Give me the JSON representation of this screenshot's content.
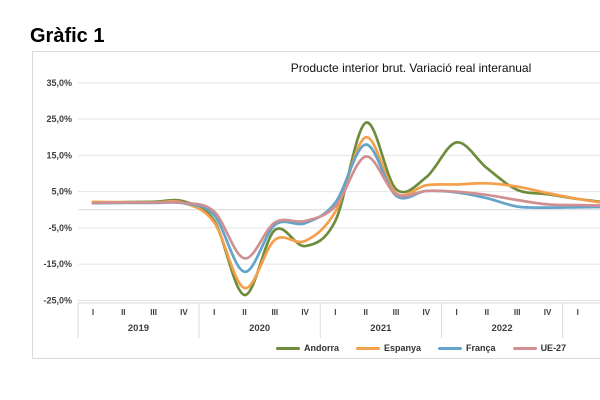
{
  "page": {
    "title": "Gràfic 1"
  },
  "chart_data": {
    "type": "line",
    "title": "Producte interior brut. Variació real interanual",
    "x_unit": "quarter",
    "year_groups": [
      {
        "year": "2019",
        "quarters": [
          "I",
          "II",
          "III",
          "IV"
        ]
      },
      {
        "year": "2020",
        "quarters": [
          "I",
          "II",
          "III",
          "IV"
        ]
      },
      {
        "year": "2021",
        "quarters": [
          "I",
          "II",
          "III",
          "IV"
        ]
      },
      {
        "year": "2022",
        "quarters": [
          "I",
          "II",
          "III",
          "IV"
        ]
      },
      {
        "year": "",
        "quarters": [
          "I"
        ]
      }
    ],
    "y_axis": {
      "tick_labels": [
        "35,0%",
        "25,0%",
        "15,0%",
        "5,0%",
        "-5,0%",
        "-15,0%",
        "-25,0%"
      ],
      "tick_values": [
        35,
        25,
        15,
        5,
        -5,
        -15,
        -25
      ],
      "ylim": [
        -25,
        35
      ],
      "unit": "percent_yoy"
    },
    "grid": "horizontal",
    "legend_position": "bottom",
    "series": [
      {
        "name": "Andorra",
        "color": "#6d8c3c",
        "values": [
          2.0,
          2.1,
          2.2,
          2.3,
          -3.0,
          -23.5,
          -5.6,
          -10.0,
          -3.0,
          24.0,
          5.7,
          9.0,
          18.6,
          11.5,
          5.5,
          4.3,
          3.0
        ]
      },
      {
        "name": "Espanya",
        "color": "#f4a04a",
        "values": [
          2.2,
          2.1,
          2.0,
          1.9,
          -3.5,
          -21.6,
          -8.3,
          -8.6,
          -0.5,
          20.0,
          4.6,
          6.8,
          7.0,
          7.3,
          6.4,
          4.6,
          3.0
        ]
      },
      {
        "name": "França",
        "color": "#62a4ca",
        "values": [
          1.8,
          1.9,
          1.9,
          1.8,
          -1.5,
          -17.1,
          -4.2,
          -3.7,
          2.0,
          18.0,
          3.9,
          5.2,
          4.8,
          3.2,
          0.9,
          0.6,
          0.7
        ]
      },
      {
        "name": "UE-27",
        "color": "#d09092",
        "values": [
          1.9,
          2.0,
          2.0,
          1.9,
          -0.5,
          -13.4,
          -3.5,
          -3.1,
          1.0,
          14.7,
          4.3,
          5.2,
          5.0,
          4.1,
          2.7,
          1.5,
          1.3
        ]
      }
    ]
  },
  "colors": {
    "grid_line": "#e4e4e4",
    "zero_line": "#d9d9d9",
    "axis_line": "#d9d9d9",
    "chart_border": "#d9d9d9",
    "label_text": "#3f3f3f"
  }
}
